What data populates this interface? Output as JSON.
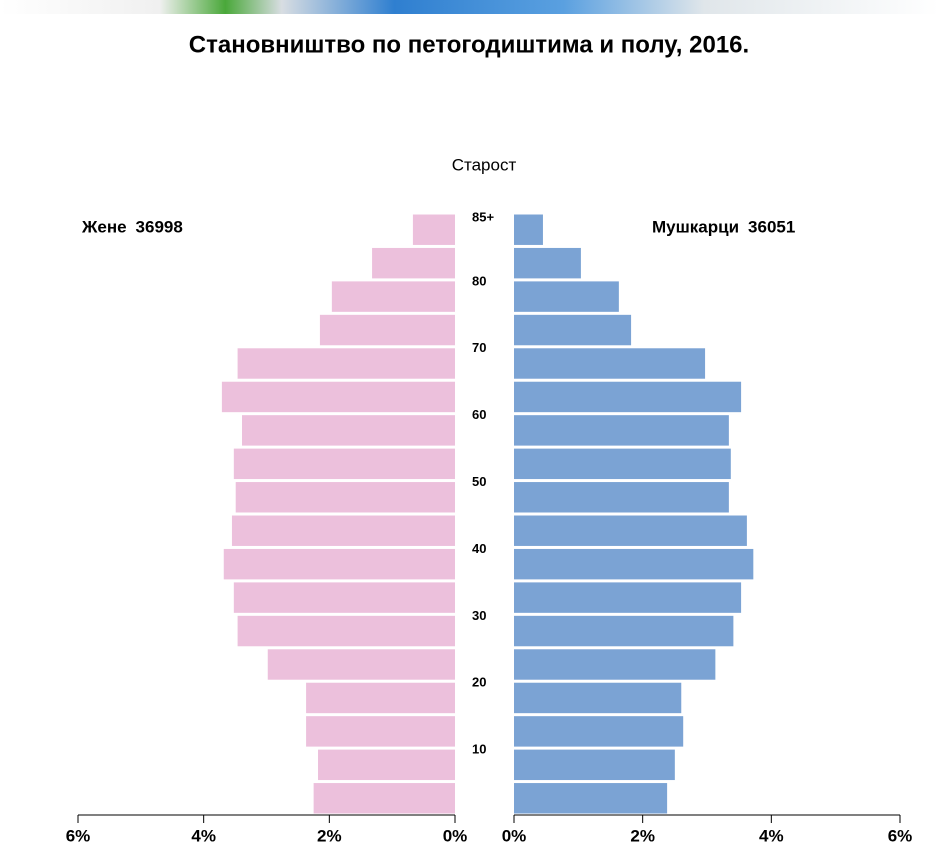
{
  "chart_data": {
    "type": "pyramid",
    "title": "Становништво по петогодиштима и полу, 2016.",
    "y_label": "Старост",
    "categories": [
      null,
      null,
      "10",
      null,
      "20",
      null,
      "30",
      null,
      "40",
      null,
      "50",
      null,
      "60",
      null,
      "70",
      null,
      "80",
      "85+"
    ],
    "series": [
      {
        "name": "Жене",
        "total": 36998,
        "color": "#ecc0dc",
        "side": "left",
        "values": [
          2.25,
          2.18,
          2.37,
          2.37,
          2.98,
          3.46,
          3.52,
          3.68,
          3.55,
          3.49,
          3.52,
          3.39,
          3.71,
          3.46,
          2.15,
          1.96,
          1.32,
          0.67
        ],
        "xlim": [
          0,
          6
        ],
        "xticks": [
          {
            "value": 6,
            "label": "6%"
          },
          {
            "value": 4,
            "label": "4%"
          },
          {
            "value": 2,
            "label": "2%"
          },
          {
            "value": 0,
            "label": "0%"
          }
        ]
      },
      {
        "name": "Мушкарци",
        "total": 36051,
        "color": "#7ba3d4",
        "side": "right",
        "values": [
          2.38,
          2.5,
          2.63,
          2.6,
          3.13,
          3.41,
          3.53,
          3.72,
          3.62,
          3.34,
          3.37,
          3.34,
          3.53,
          2.97,
          1.82,
          1.63,
          1.04,
          0.45
        ],
        "xlim": [
          0,
          6
        ],
        "xticks": [
          {
            "value": 0,
            "label": "0%"
          },
          {
            "value": 2,
            "label": "2%"
          },
          {
            "value": 4,
            "label": "4%"
          },
          {
            "value": 6,
            "label": "6%"
          }
        ]
      }
    ]
  }
}
